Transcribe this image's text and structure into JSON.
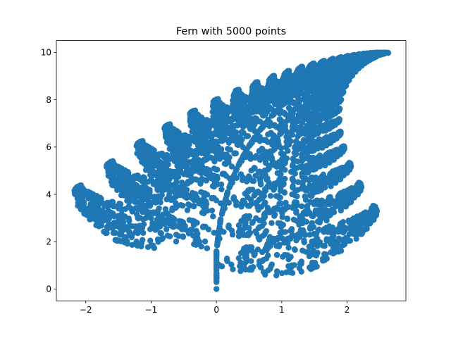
{
  "chart_data": {
    "type": "scatter",
    "title": "Fern with 5000 points",
    "xlabel": "",
    "ylabel": "",
    "n_points": 5000,
    "generator": {
      "kind": "barnsley-fern",
      "transforms": [
        {
          "a": 0.0,
          "b": 0.0,
          "c": 0.0,
          "d": 0.16,
          "e": 0.0,
          "f": 0.0,
          "p": 0.01
        },
        {
          "a": 0.85,
          "b": 0.04,
          "c": -0.04,
          "d": 0.85,
          "e": 0.0,
          "f": 1.6,
          "p": 0.85
        },
        {
          "a": 0.2,
          "b": -0.26,
          "c": 0.23,
          "d": 0.22,
          "e": 0.0,
          "f": 1.6,
          "p": 0.07
        },
        {
          "a": -0.15,
          "b": 0.28,
          "c": 0.26,
          "d": 0.24,
          "e": 0.0,
          "f": 0.44,
          "p": 0.07
        }
      ],
      "start": [
        0,
        0
      ]
    },
    "xlim": [
      -2.45,
      2.9
    ],
    "ylim": [
      -0.5,
      10.5
    ],
    "xticks": [
      -2,
      -1,
      0,
      1,
      2
    ],
    "xtick_labels": [
      "−2",
      "−1",
      "0",
      "1",
      "2"
    ],
    "yticks": [
      0,
      2,
      4,
      6,
      8,
      10
    ],
    "ytick_labels": [
      "0",
      "2",
      "4",
      "6",
      "8",
      "10"
    ],
    "grid": false,
    "marker_color": "#1f77b4",
    "marker": "circle",
    "legend": "none"
  }
}
